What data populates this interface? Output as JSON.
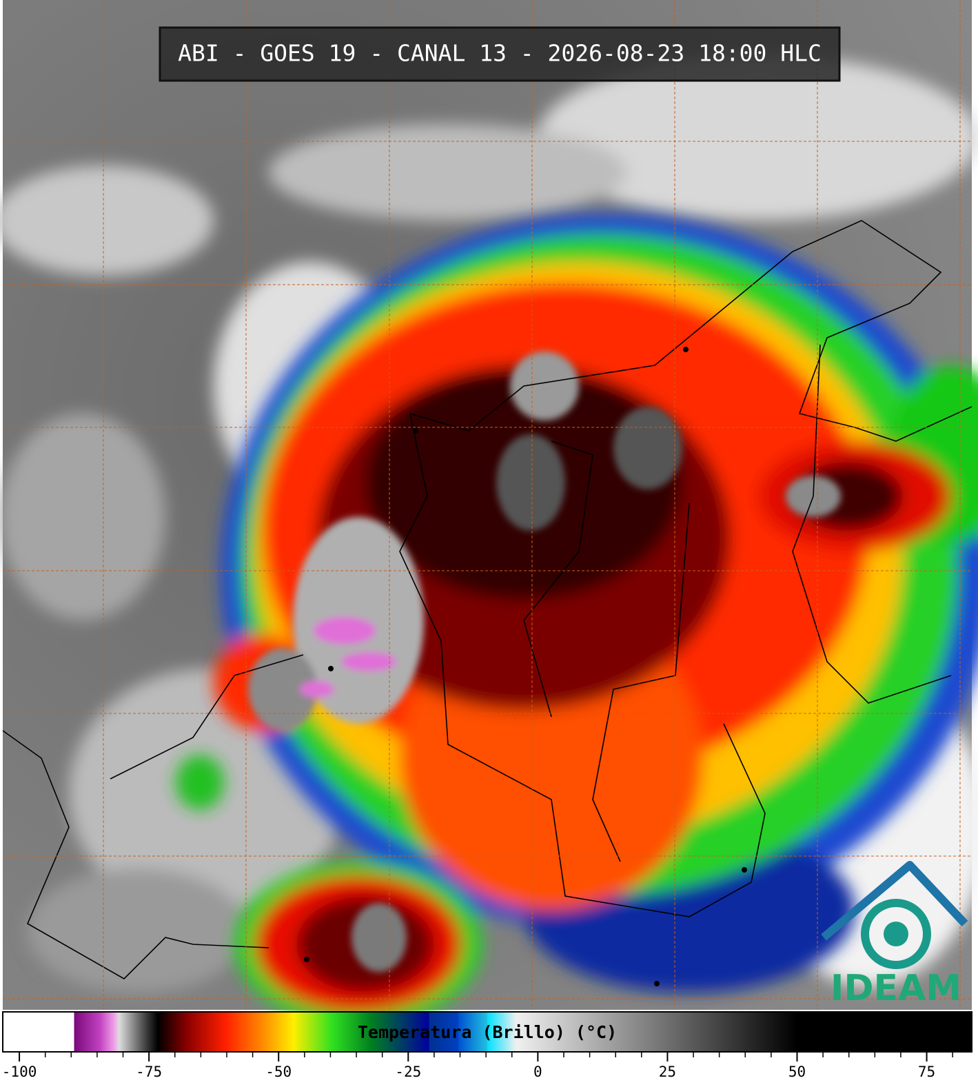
{
  "header": {
    "title": "ABI - GOES 19 - CANAL 13 - 2026-08-23 18:00 HLC"
  },
  "colorbar": {
    "label": "Temperatura (Brillo) (°C)",
    "xlim": [
      -103.2,
      83.7
    ],
    "ticks": [
      -100,
      -75,
      -50,
      -25,
      0,
      25,
      50,
      75
    ],
    "minor_ticks": [
      -95,
      -90,
      -85,
      -80,
      -70,
      -65,
      -60,
      -55,
      -45,
      -40,
      -35,
      -30,
      -20,
      -15,
      -10,
      -5,
      5,
      10,
      15,
      20,
      30,
      35,
      40,
      45,
      55,
      60,
      65,
      70,
      80
    ]
  },
  "logo": {
    "text": "IDEAM"
  }
}
